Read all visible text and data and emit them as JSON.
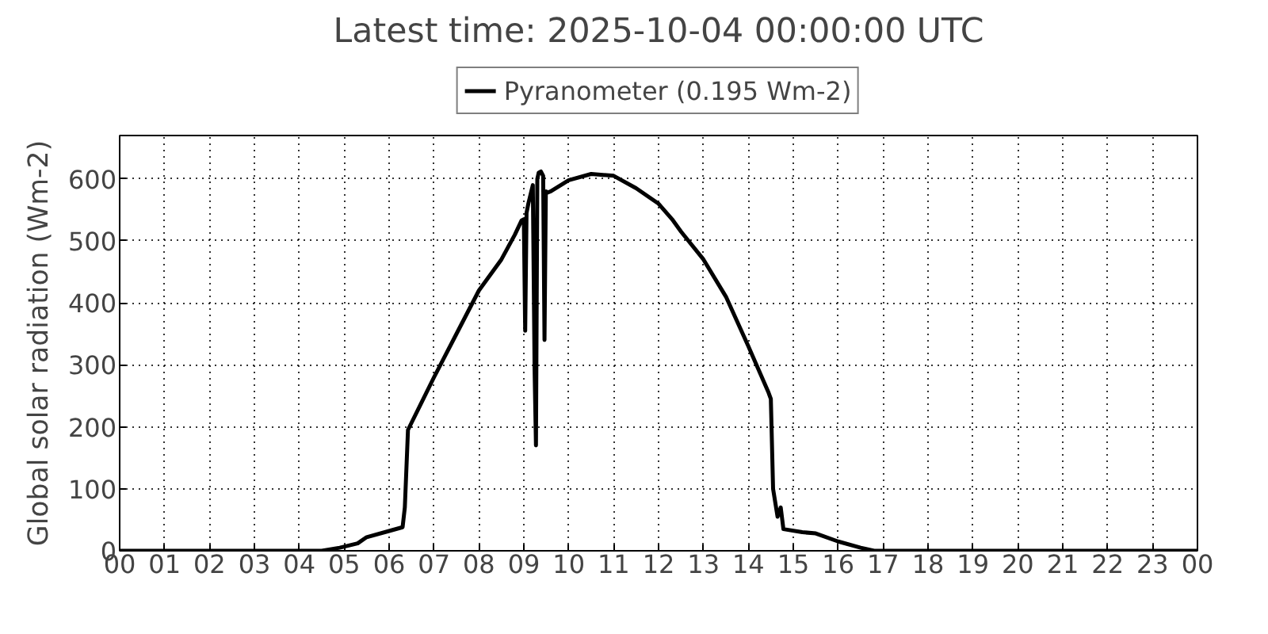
{
  "chart_data": {
    "type": "line",
    "title": "Latest time: 2025-10-04 00:00:00 UTC",
    "ylabel": "Global solar radiation (Wm-2)",
    "x": [
      0,
      4.5,
      4.9,
      5.3,
      5.5,
      6.0,
      6.3,
      6.35,
      6.42,
      7,
      7.5,
      8,
      8.5,
      8.8,
      8.95,
      9.0,
      9.03,
      9.06,
      9.1,
      9.15,
      9.2,
      9.24,
      9.27,
      9.3,
      9.33,
      9.38,
      9.43,
      9.46,
      9.49,
      9.53,
      9.6,
      10,
      10.5,
      11,
      11.5,
      12,
      12.3,
      12.5,
      13,
      13.5,
      14,
      14.45,
      14.5,
      14.55,
      14.65,
      14.72,
      14.78,
      15.2,
      15.5,
      16,
      16.5,
      16.8,
      24
    ],
    "series": [
      {
        "name": "Pyranometer (0.195 Wm-2)",
        "color": "#000000",
        "values": [
          0,
          0,
          5,
          12,
          22,
          32,
          38,
          70,
          195,
          280,
          350,
          420,
          470,
          510,
          533,
          535,
          355,
          545,
          560,
          575,
          590,
          290,
          170,
          600,
          610,
          612,
          605,
          340,
          580,
          578,
          580,
          598,
          608,
          605,
          585,
          560,
          535,
          515,
          470,
          410,
          330,
          255,
          245,
          100,
          55,
          70,
          35,
          30,
          28,
          15,
          5,
          0,
          0
        ]
      }
    ],
    "xlim": [
      0,
      24
    ],
    "ylim": [
      0,
      670
    ],
    "xticks": [
      {
        "value": 0,
        "label": "00"
      },
      {
        "value": 1,
        "label": "01"
      },
      {
        "value": 2,
        "label": "02"
      },
      {
        "value": 3,
        "label": "03"
      },
      {
        "value": 4,
        "label": "04"
      },
      {
        "value": 5,
        "label": "05"
      },
      {
        "value": 6,
        "label": "06"
      },
      {
        "value": 7,
        "label": "07"
      },
      {
        "value": 8,
        "label": "08"
      },
      {
        "value": 9,
        "label": "09"
      },
      {
        "value": 10,
        "label": "10"
      },
      {
        "value": 11,
        "label": "11"
      },
      {
        "value": 12,
        "label": "12"
      },
      {
        "value": 13,
        "label": "13"
      },
      {
        "value": 14,
        "label": "14"
      },
      {
        "value": 15,
        "label": "15"
      },
      {
        "value": 16,
        "label": "16"
      },
      {
        "value": 17,
        "label": "17"
      },
      {
        "value": 18,
        "label": "18"
      },
      {
        "value": 19,
        "label": "19"
      },
      {
        "value": 20,
        "label": "20"
      },
      {
        "value": 21,
        "label": "21"
      },
      {
        "value": 22,
        "label": "22"
      },
      {
        "value": 23,
        "label": "23"
      },
      {
        "value": 24,
        "label": "00"
      }
    ],
    "yticks": [
      0,
      100,
      200,
      300,
      400,
      500,
      600
    ],
    "grid": true,
    "legend": "top",
    "line_style": "solid"
  }
}
